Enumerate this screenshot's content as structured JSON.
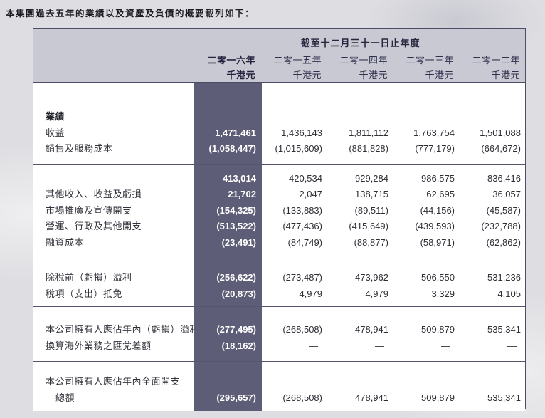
{
  "intro_line": "本集團過去五年的業績以及資產及負債的概要載列如下：",
  "colors": {
    "highlight_column_bg": "#5d5d77",
    "header_bg": "#c9c9d3",
    "table_border": "#4d4d68",
    "highlight_text": "#ffffff"
  },
  "table": {
    "period_title": "截至十二月三十一日止年度",
    "columns": [
      {
        "year": "二零一六年",
        "unit": "千港元",
        "current": true
      },
      {
        "year": "二零一五年",
        "unit": "千港元",
        "current": false
      },
      {
        "year": "二零一四年",
        "unit": "千港元",
        "current": false
      },
      {
        "year": "二零一三年",
        "unit": "千港元",
        "current": false
      },
      {
        "year": "二零一二年",
        "unit": "千港元",
        "current": false
      }
    ],
    "sections": [
      {
        "rows": [
          {
            "label": "業績",
            "bold": true,
            "values": [
              "",
              "",
              "",
              "",
              ""
            ]
          },
          {
            "label": "收益",
            "values": [
              "1,471,461",
              "1,436,143",
              "1,811,112",
              "1,763,754",
              "1,501,088"
            ]
          },
          {
            "label": "銷售及服務成本",
            "values": [
              "(1,058,447)",
              "(1,015,609)",
              "(881,828)",
              "(777,179)",
              "(664,672)"
            ]
          }
        ]
      },
      {
        "rows": [
          {
            "label": "",
            "values": [
              "413,014",
              "420,534",
              "929,284",
              "986,575",
              "836,416"
            ]
          },
          {
            "label": "其他收入、收益及虧損",
            "values": [
              "21,702",
              "2,047",
              "138,715",
              "62,695",
              "36,057"
            ]
          },
          {
            "label": "市場推廣及宣傳開支",
            "values": [
              "(154,325)",
              "(133,883)",
              "(89,511)",
              "(44,156)",
              "(45,587)"
            ]
          },
          {
            "label": "營運、行政及其他開支",
            "values": [
              "(513,522)",
              "(477,436)",
              "(415,649)",
              "(439,593)",
              "(232,788)"
            ]
          },
          {
            "label": "融資成本",
            "values": [
              "(23,491)",
              "(84,749)",
              "(88,877)",
              "(58,971)",
              "(62,862)"
            ]
          }
        ]
      },
      {
        "rows": [
          {
            "label": "除稅前（虧損）溢利",
            "values": [
              "(256,622)",
              "(273,487)",
              "473,962",
              "506,550",
              "531,236"
            ]
          },
          {
            "label": "稅項（支出）抵免",
            "values": [
              "(20,873)",
              "4,979",
              "4,979",
              "3,329",
              "4,105"
            ]
          }
        ]
      },
      {
        "rows": [
          {
            "label": "本公司擁有人應佔年內（虧損）溢利",
            "values": [
              "(277,495)",
              "(268,508)",
              "478,941",
              "509,879",
              "535,341"
            ]
          },
          {
            "label": "換算海外業務之匯兌差額",
            "values": [
              "(18,162)",
              "—",
              "—",
              "—",
              "—"
            ]
          }
        ]
      },
      {
        "rows": [
          {
            "label": "本公司擁有人應佔年內全面開支",
            "values": [
              "",
              "",
              "",
              "",
              ""
            ]
          },
          {
            "label": "總額",
            "indent": true,
            "values": [
              "(295,657)",
              "(268,508)",
              "478,941",
              "509,879",
              "535,341"
            ]
          }
        ]
      }
    ]
  }
}
